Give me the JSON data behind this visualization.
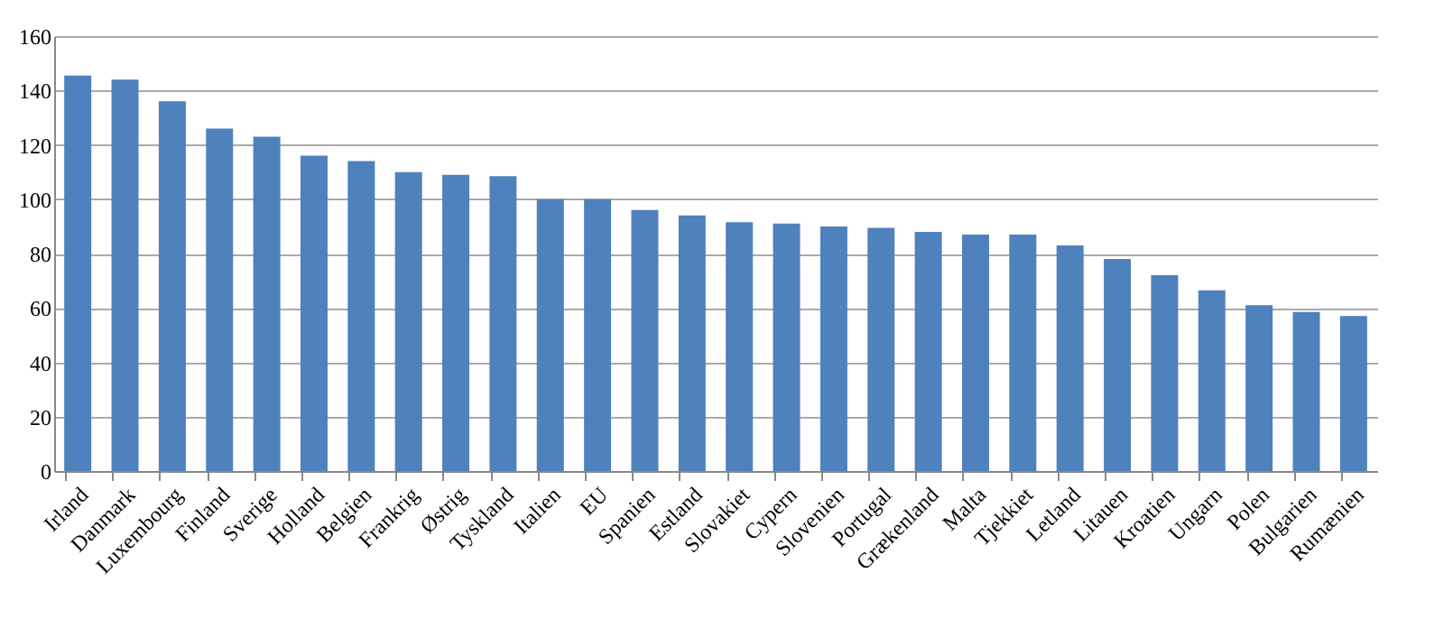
{
  "chart_data": {
    "type": "bar",
    "categories": [
      "Irland",
      "Danmark",
      "Luxembourg",
      "Finland",
      "Sverige",
      "Holland",
      "Belgien",
      "Frankrig",
      "Østrig",
      "Tyskland",
      "Italien",
      "EU",
      "Spanien",
      "Estland",
      "Slovakiet",
      "Cypern",
      "Slovenien",
      "Portugal",
      "Grækenland",
      "Malta",
      "Tjekkiet",
      "Letland",
      "Litauen",
      "Kroatien",
      "Ungarn",
      "Polen",
      "Bulgarien",
      "Rumænien"
    ],
    "values": [
      145.5,
      144,
      136,
      126,
      123,
      116,
      114,
      110,
      109,
      108.5,
      100,
      100,
      96,
      94,
      91.5,
      91,
      90,
      89.5,
      88,
      87,
      87,
      83,
      78,
      72,
      66.5,
      61,
      58.5,
      57
    ],
    "color": "#4f81bd",
    "ylim": [
      0,
      160
    ],
    "yticks": [
      0,
      20,
      40,
      60,
      80,
      100,
      120,
      140,
      160
    ],
    "grid": "y"
  }
}
